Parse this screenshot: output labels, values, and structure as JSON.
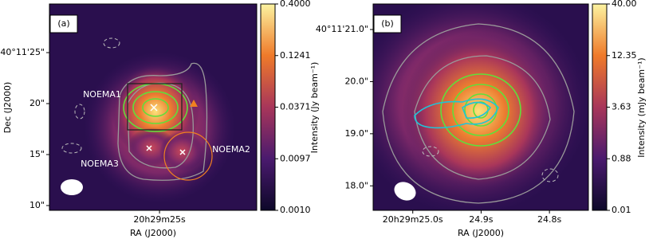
{
  "chart_data": [
    {
      "type": "image",
      "panel_label": "(a)",
      "x_label": "RA (J2000)",
      "y_label": "Dec (J2000)",
      "xlim": [
        25.94,
        24.17
      ],
      "xticks": [
        {
          "value": 25,
          "label": "20h29m25s"
        }
      ],
      "ylim": [
        9.53,
        29.77
      ],
      "yticks": [
        {
          "value": 10,
          "label": "10\""
        },
        {
          "value": 15,
          "label": "15\""
        },
        {
          "value": 20,
          "label": "20\""
        },
        {
          "value": 25,
          "label": "40°11'25\""
        }
      ],
      "annotations": [
        "NOEMA1",
        "NOEMA2",
        "NOEMA3"
      ],
      "colorbar": {
        "label": "Intensity (Jy beam⁻¹)",
        "ticks": [
          {
            "value": 0.001,
            "label": "0.0010"
          },
          {
            "value": 0.0097,
            "label": "0.0097"
          },
          {
            "value": 0.0371,
            "label": "0.0371"
          },
          {
            "value": 0.1241,
            "label": "0.1241"
          },
          {
            "value": 0.4,
            "label": "0.4000"
          }
        ]
      }
    },
    {
      "type": "image",
      "panel_label": "(b)",
      "x_label": "RA (J2000)",
      "xlim": [
        25.058,
        24.743
      ],
      "xticks": [
        {
          "value": 25.0,
          "label": "20h29m25.0s"
        },
        {
          "value": 24.9,
          "label": "24.9s"
        },
        {
          "value": 24.8,
          "label": "24.8s"
        }
      ],
      "ylim": [
        17.53,
        21.49
      ],
      "yticks": [
        {
          "value": 18,
          "label": "18.0\""
        },
        {
          "value": 19,
          "label": "19.0\""
        },
        {
          "value": 20,
          "label": "20.0\""
        },
        {
          "value": 21,
          "label": "40°11'21.0\""
        }
      ],
      "colorbar": {
        "label": "Intensity (mJy beam⁻¹)",
        "ticks": [
          0.01,
          {
            "value": 0.88,
            "label": "0.88"
          },
          {
            "value": 3.63,
            "label": "3.63"
          },
          {
            "value": 12.35,
            "label": "12.35"
          },
          {
            "value": 40,
            "label": "40.00"
          }
        ]
      }
    }
  ]
}
